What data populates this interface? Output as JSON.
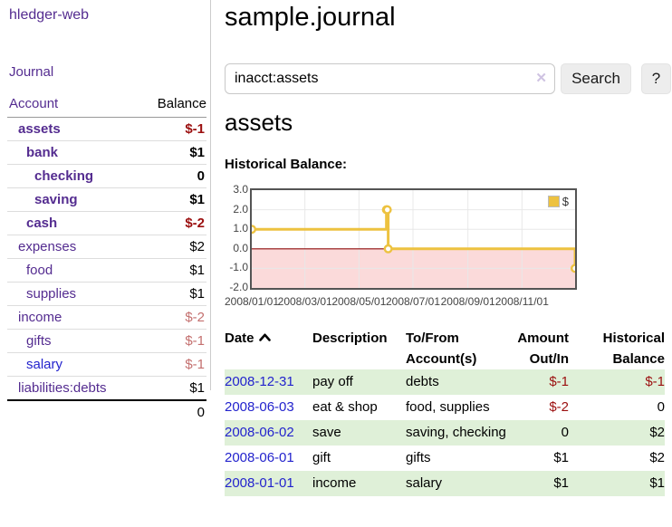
{
  "app": {
    "title": "hledger-web",
    "nav": {
      "journal": "Journal"
    }
  },
  "sidebar": {
    "account_header": "Account",
    "balance_header": "Balance",
    "accounts": [
      {
        "name": "assets",
        "depth": 1,
        "bold": true,
        "balance": "$-1",
        "balance_style": "neg-strong",
        "link_style": "purple"
      },
      {
        "name": "bank",
        "depth": 2,
        "bold": true,
        "balance": "$1",
        "balance_style": "pos",
        "link_style": "purple"
      },
      {
        "name": "checking",
        "depth": 3,
        "bold": true,
        "balance": "0",
        "balance_style": "pos",
        "link_style": "purple"
      },
      {
        "name": "saving",
        "depth": 3,
        "bold": true,
        "balance": "$1",
        "balance_style": "pos",
        "link_style": "purple"
      },
      {
        "name": "cash",
        "depth": 2,
        "bold": true,
        "balance": "$-2",
        "balance_style": "neg-strong",
        "link_style": "purple"
      },
      {
        "name": "expenses",
        "depth": 1,
        "bold": false,
        "balance": "$2",
        "balance_style": "pos",
        "link_style": "purple"
      },
      {
        "name": "food",
        "depth": 2,
        "bold": false,
        "balance": "$1",
        "balance_style": "pos",
        "link_style": "purple"
      },
      {
        "name": "supplies",
        "depth": 2,
        "bold": false,
        "balance": "$1",
        "balance_style": "pos",
        "link_style": "purple"
      },
      {
        "name": "income",
        "depth": 1,
        "bold": false,
        "balance": "$-2",
        "balance_style": "neg-weak",
        "link_style": "purple"
      },
      {
        "name": "gifts",
        "depth": 2,
        "bold": false,
        "balance": "$-1",
        "balance_style": "neg-weak",
        "link_style": "purple"
      },
      {
        "name": "salary",
        "depth": 2,
        "bold": false,
        "balance": "$-1",
        "balance_style": "neg-weak",
        "link_style": "blue"
      },
      {
        "name": "liabilities:debts",
        "depth": 1,
        "bold": false,
        "balance": "$1",
        "balance_style": "pos",
        "link_style": "purple"
      }
    ],
    "total": "0"
  },
  "main": {
    "title": "sample.journal",
    "search": {
      "value": "inacct:assets",
      "clear_icon": "✕",
      "button": "Search",
      "help": "?"
    },
    "section_title": "assets",
    "chart_label": "Historical Balance:"
  },
  "chart_data": {
    "type": "line",
    "title": "Historical Balance:",
    "legend": [
      {
        "label": "$",
        "color": "#edc240"
      }
    ],
    "legend_position": "top-right",
    "ylim": [
      -2,
      3
    ],
    "xlim_days": [
      0,
      365
    ],
    "y_ticks": [
      {
        "value": 3,
        "label": "3.0"
      },
      {
        "value": 2,
        "label": "2.0"
      },
      {
        "value": 1,
        "label": "1.0"
      },
      {
        "value": 0,
        "label": "0.0"
      },
      {
        "value": -1,
        "label": "-1.0"
      },
      {
        "value": -2,
        "label": "-2.0"
      }
    ],
    "x_ticks": [
      {
        "day": 0,
        "label": "2008/01/01"
      },
      {
        "day": 60,
        "label": "2008/03/01"
      },
      {
        "day": 121,
        "label": "2008/05/01"
      },
      {
        "day": 182,
        "label": "2008/07/01"
      },
      {
        "day": 244,
        "label": "2008/09/01"
      },
      {
        "day": 305,
        "label": "2008/11/01"
      }
    ],
    "grid": true,
    "series": [
      {
        "name": "$",
        "color": "#edc240",
        "step": "after",
        "points": [
          {
            "date": "2008-01-01",
            "day": 0,
            "value": 1
          },
          {
            "date": "2008-06-01",
            "day": 152,
            "value": 2
          },
          {
            "date": "2008-06-02",
            "day": 153,
            "value": 2
          },
          {
            "date": "2008-06-03",
            "day": 154,
            "value": 0
          },
          {
            "date": "2008-12-31",
            "day": 365,
            "value": -1
          }
        ]
      }
    ],
    "negative_region_fill": "#fbdada",
    "zero_line_color": "#8f0b0b",
    "grid_color": "#e8e8e8",
    "border_color": "#545454"
  },
  "register": {
    "headers": {
      "date": "Date",
      "description": "Description",
      "accounts": "To/From Account(s)",
      "amount": "Amount Out/In",
      "balance": "Historical Balance"
    },
    "rows": [
      {
        "date": "2008-12-31",
        "description": "pay off",
        "accounts": "debts",
        "amount": "$-1",
        "amount_neg": true,
        "balance": "$-1",
        "balance_neg": true,
        "shaded": true
      },
      {
        "date": "2008-06-03",
        "description": "eat & shop",
        "accounts": "food, supplies",
        "amount": "$-2",
        "amount_neg": true,
        "balance": "0",
        "balance_neg": false,
        "shaded": false
      },
      {
        "date": "2008-06-02",
        "description": "save",
        "accounts": "saving, checking",
        "amount": "0",
        "amount_neg": false,
        "balance": "$2",
        "balance_neg": false,
        "shaded": true
      },
      {
        "date": "2008-06-01",
        "description": "gift",
        "accounts": "gifts",
        "amount": "$1",
        "amount_neg": false,
        "balance": "$2",
        "balance_neg": false,
        "shaded": false
      },
      {
        "date": "2008-01-01",
        "description": "income",
        "accounts": "salary",
        "amount": "$1",
        "amount_neg": false,
        "balance": "$1",
        "balance_neg": false,
        "shaded": true
      }
    ]
  },
  "colors": {
    "link_purple": "#542c90",
    "link_blue": "#2323cd",
    "negative_strong": "#9b0f0f",
    "negative_weak": "#c4706f",
    "row_shade_green": "#dff0d8",
    "series_gold": "#edc240"
  }
}
